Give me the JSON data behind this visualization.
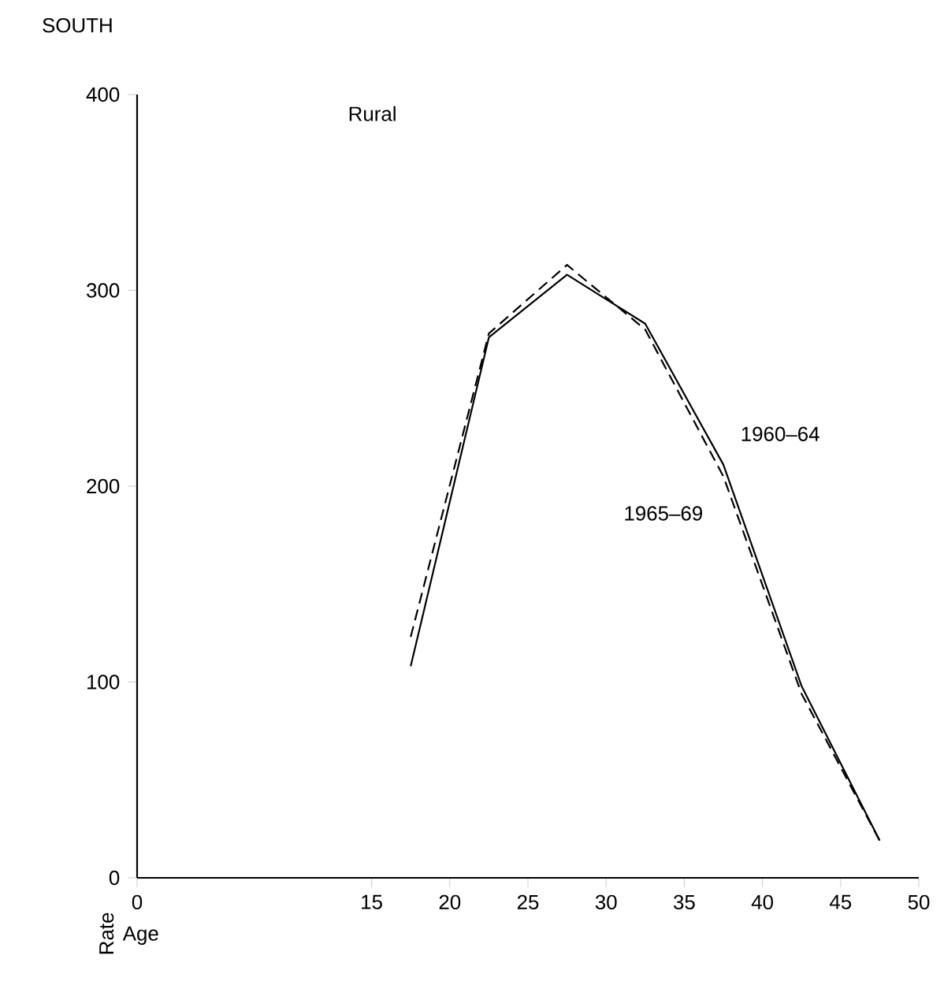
{
  "chart_data": {
    "type": "line",
    "title": "SOUTH",
    "xlabel": "Age",
    "ylabel": "Rate",
    "annotations": [
      "Rural"
    ],
    "x": [
      17.5,
      22.5,
      27.5,
      32.5,
      37.5,
      42.5,
      47.5
    ],
    "series": [
      {
        "name": "1960–64",
        "color": "#000000",
        "line_style": "solid",
        "values": [
          108,
          276,
          308,
          283,
          211,
          98,
          19
        ]
      },
      {
        "name": "1965–69",
        "color": "#000000",
        "line_style": "dashed",
        "values": [
          123,
          278,
          313,
          280,
          205,
          94,
          19
        ]
      }
    ],
    "xlim": [
      0,
      50
    ],
    "xticks": [
      0,
      15,
      20,
      25,
      30,
      35,
      40,
      45,
      50
    ],
    "ylim": [
      0,
      400
    ],
    "yticks": [
      0,
      100,
      200,
      300,
      400
    ]
  }
}
